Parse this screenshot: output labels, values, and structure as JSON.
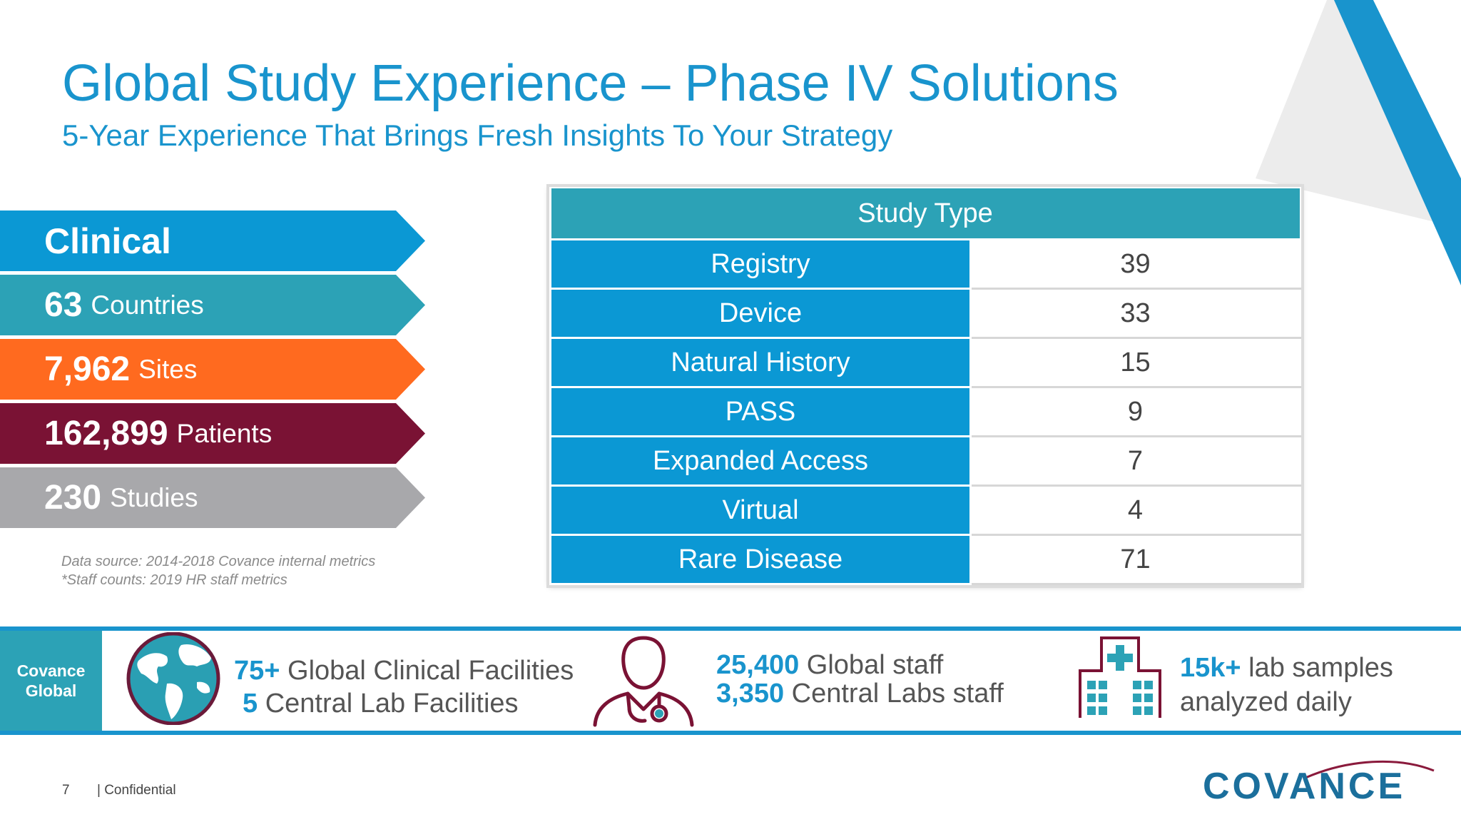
{
  "header": {
    "title": "Global Study Experience – Phase IV Solutions",
    "subtitle": "5-Year Experience That Brings Fresh Insights To Your Strategy"
  },
  "banners": [
    {
      "big": "Clinical",
      "small": "",
      "color": "#0b98d4"
    },
    {
      "big": "63",
      "small": "Countries",
      "color": "#2ca2b6"
    },
    {
      "big": "7,962",
      "small": "Sites",
      "color": "#ff6a1f"
    },
    {
      "big": "162,899",
      "small": "Patients",
      "color": "#7a1234"
    },
    {
      "big": "230",
      "small": "Studies",
      "color": "#a8a8ab"
    }
  ],
  "notes": {
    "source": "Data source: 2014-2018 Covance internal metrics",
    "staff": "*Staff counts: 2019 HR staff metrics"
  },
  "table": {
    "header": "Study Type",
    "rows": [
      {
        "type": "Registry",
        "count": "39"
      },
      {
        "type": "Device",
        "count": "33"
      },
      {
        "type": "Natural History",
        "count": "15"
      },
      {
        "type": "PASS",
        "count": "9"
      },
      {
        "type": "Expanded Access",
        "count": "7"
      },
      {
        "type": "Virtual",
        "count": "4"
      },
      {
        "type": "Rare Disease",
        "count": "71"
      }
    ]
  },
  "strip": {
    "label_line1": "Covance",
    "label_line2": "Global",
    "facilities": {
      "hl1": "75+",
      "text1": "Global Clinical Facilities",
      "hl2": "5",
      "text2": "Central Lab Facilities"
    },
    "staff": {
      "hl1": "25,400",
      "text1": "Global staff",
      "hl2": "3,350",
      "text2": "Central Labs staff"
    },
    "samples": {
      "hl1": "15k+",
      "text1": "lab samples",
      "text2": "analyzed daily"
    }
  },
  "footer": {
    "page": "7",
    "confidential": "| Confidential",
    "logo": "COVANCE"
  },
  "colors": {
    "accent": "#1994cd",
    "teal": "#2ca2b6",
    "orange": "#ff6a1f",
    "maroon": "#7a1234",
    "gray": "#a8a8ab"
  },
  "icons": [
    "globe-icon",
    "doctor-icon",
    "hospital-icon"
  ]
}
